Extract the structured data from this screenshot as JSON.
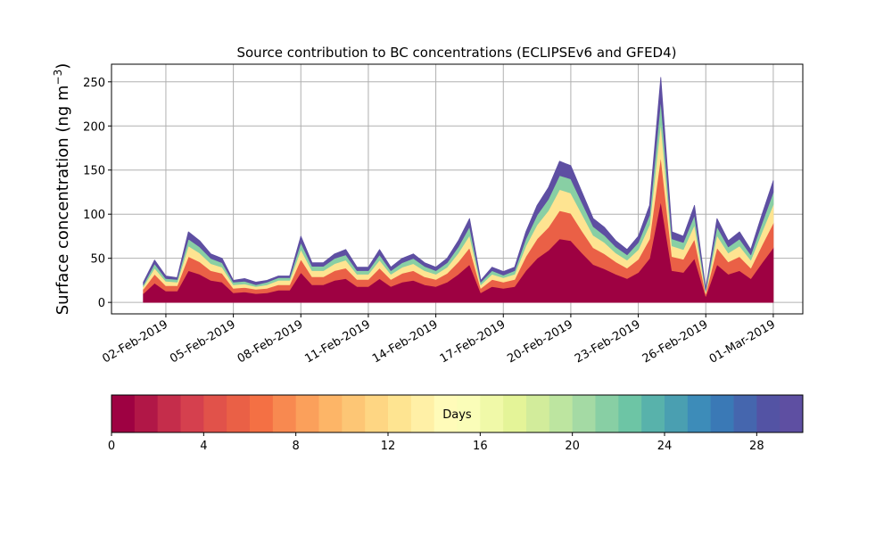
{
  "chart_data": {
    "type": "stacked_area",
    "title": "Source contribution to BC concentrations (ECLIPSEv6 and GFED4)",
    "ylabel": {
      "text": "Surface concentration (ng m",
      "sup": "−3",
      "end": ")"
    },
    "x": [
      "2019-02-01T00:00",
      "2019-02-01T12:00",
      "2019-02-02T00:00",
      "2019-02-02T12:00",
      "2019-02-03T00:00",
      "2019-02-03T12:00",
      "2019-02-04T00:00",
      "2019-02-04T12:00",
      "2019-02-05T00:00",
      "2019-02-05T12:00",
      "2019-02-06T00:00",
      "2019-02-06T12:00",
      "2019-02-07T00:00",
      "2019-02-07T12:00",
      "2019-02-08T00:00",
      "2019-02-08T12:00",
      "2019-02-09T00:00",
      "2019-02-09T12:00",
      "2019-02-10T00:00",
      "2019-02-10T12:00",
      "2019-02-11T00:00",
      "2019-02-11T12:00",
      "2019-02-12T00:00",
      "2019-02-12T12:00",
      "2019-02-13T00:00",
      "2019-02-13T12:00",
      "2019-02-14T00:00",
      "2019-02-14T12:00",
      "2019-02-15T00:00",
      "2019-02-15T12:00",
      "2019-02-16T00:00",
      "2019-02-16T12:00",
      "2019-02-17T00:00",
      "2019-02-17T12:00",
      "2019-02-18T00:00",
      "2019-02-18T12:00",
      "2019-02-19T00:00",
      "2019-02-19T12:00",
      "2019-02-20T00:00",
      "2019-02-20T12:00",
      "2019-02-21T00:00",
      "2019-02-21T12:00",
      "2019-02-22T00:00",
      "2019-02-22T12:00",
      "2019-02-23T00:00",
      "2019-02-23T12:00",
      "2019-02-24T00:00",
      "2019-02-24T12:00",
      "2019-02-25T00:00",
      "2019-02-25T12:00",
      "2019-02-26T00:00",
      "2019-02-26T12:00",
      "2019-02-27T00:00",
      "2019-02-27T12:00",
      "2019-02-28T00:00",
      "2019-02-28T12:00",
      "2019-03-01T00:00"
    ],
    "series": [
      {
        "color": "#9e0142",
        "values": [
          10,
          22,
          13,
          13,
          36,
          32,
          25,
          23,
          11,
          12,
          10,
          11,
          14,
          14,
          34,
          20,
          20,
          25,
          27,
          18,
          18,
          27,
          18,
          23,
          25,
          20,
          18,
          23,
          32,
          43,
          11,
          18,
          16,
          18,
          36,
          50,
          59,
          72,
          70,
          56,
          43,
          38,
          32,
          27,
          34,
          50,
          115,
          36,
          34,
          50,
          7,
          43,
          32,
          36,
          27,
          45,
          62
        ]
      },
      {
        "color": "#ea6046",
        "values": [
          5,
          10,
          6,
          6,
          16,
          14,
          11,
          10,
          5,
          5,
          5,
          5,
          6,
          6,
          15,
          9,
          9,
          11,
          12,
          8,
          8,
          12,
          8,
          10,
          11,
          9,
          8,
          10,
          14,
          19,
          5,
          8,
          7,
          8,
          16,
          22,
          26,
          32,
          31,
          25,
          19,
          17,
          14,
          12,
          15,
          22,
          51,
          16,
          15,
          22,
          3,
          19,
          14,
          16,
          12,
          20,
          28
        ]
      },
      {
        "color": "#fee491",
        "values": [
          3,
          7,
          5,
          4,
          12,
          10,
          8,
          7,
          4,
          4,
          3,
          4,
          5,
          5,
          11,
          7,
          7,
          8,
          9,
          6,
          6,
          9,
          6,
          7,
          8,
          7,
          6,
          7,
          10,
          14,
          4,
          6,
          5,
          6,
          12,
          16,
          19,
          24,
          23,
          19,
          14,
          13,
          10,
          9,
          11,
          16,
          38,
          12,
          11,
          16,
          2,
          14,
          10,
          12,
          9,
          15,
          21
        ]
      },
      {
        "color": "#88cfa4",
        "values": [
          2,
          5,
          3,
          3,
          8,
          7,
          6,
          5,
          3,
          3,
          2,
          3,
          3,
          3,
          8,
          5,
          5,
          6,
          6,
          4,
          4,
          6,
          4,
          5,
          6,
          5,
          4,
          5,
          7,
          10,
          3,
          4,
          3,
          4,
          8,
          11,
          13,
          16,
          16,
          13,
          10,
          8,
          7,
          6,
          8,
          11,
          26,
          8,
          8,
          11,
          2,
          10,
          7,
          8,
          6,
          10,
          14
        ]
      },
      {
        "color": "#5e4fa2",
        "values": [
          3,
          4,
          3,
          2,
          8,
          7,
          5,
          5,
          2,
          3,
          3,
          2,
          2,
          2,
          7,
          4,
          4,
          5,
          6,
          4,
          4,
          6,
          4,
          5,
          5,
          4,
          4,
          5,
          7,
          9,
          2,
          4,
          4,
          4,
          8,
          11,
          13,
          16,
          15,
          12,
          9,
          9,
          7,
          6,
          7,
          11,
          25,
          8,
          7,
          11,
          1,
          9,
          7,
          8,
          6,
          10,
          13
        ]
      }
    ],
    "xlim": [
      "2019-01-30T14:00",
      "2019-03-02T07:30"
    ],
    "xticks": [
      {
        "value": "2019-02-02T00:00",
        "label": "02-Feb-2019"
      },
      {
        "value": "2019-02-05T00:00",
        "label": "05-Feb-2019"
      },
      {
        "value": "2019-02-08T00:00",
        "label": "08-Feb-2019"
      },
      {
        "value": "2019-02-11T00:00",
        "label": "11-Feb-2019"
      },
      {
        "value": "2019-02-14T00:00",
        "label": "14-Feb-2019"
      },
      {
        "value": "2019-02-17T00:00",
        "label": "17-Feb-2019"
      },
      {
        "value": "2019-02-20T00:00",
        "label": "20-Feb-2019"
      },
      {
        "value": "2019-02-23T00:00",
        "label": "23-Feb-2019"
      },
      {
        "value": "2019-02-26T00:00",
        "label": "26-Feb-2019"
      },
      {
        "value": "2019-03-01T00:00",
        "label": "01-Mar-2019"
      }
    ],
    "ylim": [
      -13,
      270
    ],
    "yticks": [
      0,
      50,
      100,
      150,
      200,
      250
    ],
    "grid": true,
    "colorbar": {
      "label": "Days",
      "lim": [
        0,
        30
      ],
      "ticks": [
        0,
        4,
        8,
        12,
        16,
        20,
        24,
        28
      ],
      "colors": [
        "#9e0142",
        "#b11747",
        "#c52d4b",
        "#d5404e",
        "#e1524a",
        "#ea6046",
        "#f47044",
        "#f88950",
        "#fba05b",
        "#fdb567",
        "#fdc675",
        "#fed683",
        "#fee491",
        "#fff0a6",
        "#fffbb9",
        "#fafdb8",
        "#f0f9a8",
        "#e4f498",
        "#d2ec9b",
        "#bde5a0",
        "#a4daa4",
        "#88cfa4",
        "#6dc5a5",
        "#58b2ab",
        "#4a9fb1",
        "#3d8cb9",
        "#3a79b6",
        "#4566ae",
        "#5353a4",
        "#5e4fa2"
      ]
    }
  }
}
